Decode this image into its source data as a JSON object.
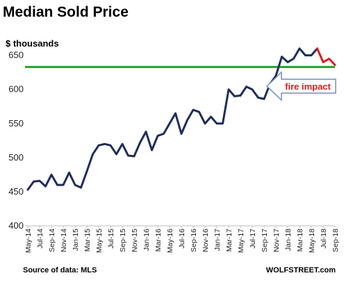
{
  "chart_data": {
    "type": "line",
    "title": "Median Sold Price",
    "ylabel": "$ thousands",
    "ylim": [
      400,
      670
    ],
    "yticks": [
      400,
      450,
      500,
      550,
      600,
      650
    ],
    "reference_line": {
      "value": 633,
      "color": "#2ca02c"
    },
    "annotation": {
      "text": "fire impact"
    },
    "source": "Source of data: MLS",
    "credit": "WOLFSTREET.com",
    "tick_labels": [
      "May-14",
      "Jul-14",
      "Sep-14",
      "Nov-14",
      "Jan-15",
      "Mar-15",
      "May-15",
      "Jul-15",
      "Sep-15",
      "Nov-15",
      "Jan-16",
      "Mar-16",
      "May-16",
      "Jul-16",
      "Sep-16",
      "Nov-16",
      "Jan-17",
      "Mar-17",
      "May-17",
      "Jul-17",
      "Sep-17",
      "Nov-17",
      "Jan-18",
      "Mar-18",
      "May-18",
      "Jul-18",
      "Sep-18"
    ],
    "series": [
      {
        "color": "#1f2d5a",
        "x": [
          "May-14",
          "Jun-14",
          "Jul-14",
          "Aug-14",
          "Sep-14",
          "Oct-14",
          "Nov-14",
          "Dec-14",
          "Jan-15",
          "Feb-15",
          "Mar-15",
          "Apr-15",
          "May-15",
          "Jun-15",
          "Jul-15",
          "Aug-15",
          "Sep-15",
          "Oct-15",
          "Nov-15",
          "Dec-15",
          "Jan-16",
          "Feb-16",
          "Mar-16",
          "Apr-16",
          "May-16",
          "Jun-16",
          "Jul-16",
          "Aug-16",
          "Sep-16",
          "Oct-16",
          "Nov-16",
          "Dec-16",
          "Jan-17",
          "Feb-17",
          "Mar-17",
          "Apr-17",
          "May-17",
          "Jun-17",
          "Jul-17",
          "Aug-17",
          "Sep-17",
          "Oct-17",
          "Nov-17",
          "Dec-17",
          "Jan-18",
          "Feb-18",
          "Mar-18",
          "Apr-18",
          "May-18",
          "Jun-18"
        ],
        "values": [
          453,
          465,
          466,
          458,
          475,
          460,
          460,
          478,
          460,
          456,
          480,
          505,
          518,
          520,
          518,
          505,
          520,
          503,
          502,
          522,
          538,
          511,
          532,
          535,
          550,
          565,
          535,
          555,
          570,
          567,
          550,
          560,
          550,
          550,
          600,
          590,
          591,
          604,
          600,
          588,
          586,
          608,
          620,
          648,
          640,
          645,
          660,
          650,
          650,
          660
        ]
      },
      {
        "color": "#e11b1b",
        "x": [
          "Jun-18",
          "Jul-18",
          "Aug-18",
          "Sep-18"
        ],
        "values": [
          660,
          640,
          645,
          636
        ]
      }
    ]
  }
}
